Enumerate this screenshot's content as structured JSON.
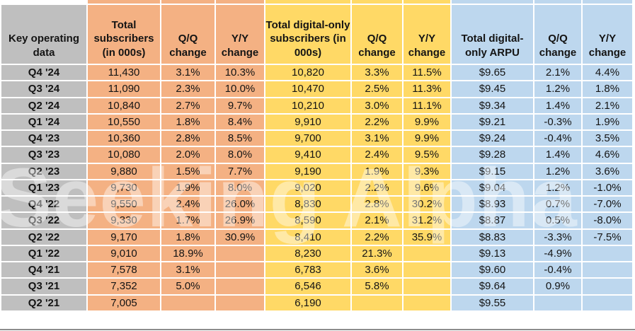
{
  "watermark": {
    "text": "Seeking Alpha"
  },
  "colors": {
    "label_bg": "#bfbfbf",
    "orange": "#f4b183",
    "yellow": "#ffd966",
    "blue": "#bdd7ee",
    "text": "#141414",
    "bottom_border": "#8c8c8c"
  },
  "table": {
    "columns": [
      {
        "key": "key-operating-data",
        "label": "Key operating data",
        "group": "label_bg"
      },
      {
        "key": "total-subscribers",
        "label": "Total subscribers (in 000s)",
        "group": "orange"
      },
      {
        "key": "total-subscribers-qq",
        "label": "Q/Q change",
        "group": "orange"
      },
      {
        "key": "total-subscribers-yy",
        "label": "Y/Y change",
        "group": "orange"
      },
      {
        "key": "digital-subscribers",
        "label": "Total digital-only subscribers (in 000s)",
        "group": "yellow"
      },
      {
        "key": "digital-subscribers-qq",
        "label": "Q/Q change",
        "group": "yellow"
      },
      {
        "key": "digital-subscribers-yy",
        "label": "Y/Y change",
        "group": "yellow"
      },
      {
        "key": "digital-arpu",
        "label": "Total digital-only ARPU",
        "group": "blue"
      },
      {
        "key": "digital-arpu-qq",
        "label": "Q/Q change",
        "group": "blue"
      },
      {
        "key": "digital-arpu-yy",
        "label": "Y/Y change",
        "group": "blue"
      }
    ],
    "rows": [
      {
        "label": "Q4 '24",
        "values": [
          "11,430",
          "3.1%",
          "10.3%",
          "10,820",
          "3.3%",
          "11.5%",
          "$9.65",
          "2.1%",
          "4.4%"
        ]
      },
      {
        "label": "Q3 '24",
        "values": [
          "11,090",
          "2.3%",
          "10.0%",
          "10,470",
          "2.5%",
          "11.3%",
          "$9.45",
          "1.2%",
          "1.8%"
        ]
      },
      {
        "label": "Q2 '24",
        "values": [
          "10,840",
          "2.7%",
          "9.7%",
          "10,210",
          "3.0%",
          "11.1%",
          "$9.34",
          "1.4%",
          "2.1%"
        ]
      },
      {
        "label": "Q1 '24",
        "values": [
          "10,550",
          "1.8%",
          "8.4%",
          "9,910",
          "2.2%",
          "9.9%",
          "$9.21",
          "-0.3%",
          "1.9%"
        ]
      },
      {
        "label": "Q4 '23",
        "values": [
          "10,360",
          "2.8%",
          "8.5%",
          "9,700",
          "3.1%",
          "9.9%",
          "$9.24",
          "-0.4%",
          "3.5%"
        ]
      },
      {
        "label": "Q3 '23",
        "values": [
          "10,080",
          "2.0%",
          "8.0%",
          "9,410",
          "2.4%",
          "9.5%",
          "$9.28",
          "1.4%",
          "4.6%"
        ]
      },
      {
        "label": "Q2 '23",
        "values": [
          "9,880",
          "1.5%",
          "7.7%",
          "9,190",
          "1.9%",
          "9.3%",
          "$9.15",
          "1.2%",
          "3.6%"
        ]
      },
      {
        "label": "Q1 '23",
        "values": [
          "9,730",
          "1.9%",
          "8.0%",
          "9,020",
          "2.2%",
          "9.6%",
          "$9.04",
          "1.2%",
          "-1.0%"
        ]
      },
      {
        "label": "Q4 '22",
        "values": [
          "9,550",
          "2.4%",
          "26.0%",
          "8,830",
          "2.8%",
          "30.2%",
          "$8.93",
          "0.7%",
          "-7.0%"
        ]
      },
      {
        "label": "Q3 '22",
        "values": [
          "9,330",
          "1.7%",
          "26.9%",
          "8,590",
          "2.1%",
          "31.2%",
          "$8.87",
          "0.5%",
          "-8.0%"
        ]
      },
      {
        "label": "Q2 '22",
        "values": [
          "9,170",
          "1.8%",
          "30.9%",
          "8,410",
          "2.2%",
          "35.9%",
          "$8.83",
          "-3.3%",
          "-7.5%"
        ]
      },
      {
        "label": "Q1 '22",
        "values": [
          "9,010",
          "18.9%",
          "",
          "8,230",
          "21.3%",
          "",
          "$9.13",
          "-4.9%",
          ""
        ]
      },
      {
        "label": "Q4 '21",
        "values": [
          "7,578",
          "3.1%",
          "",
          "6,783",
          "3.6%",
          "",
          "$9.60",
          "-0.4%",
          ""
        ]
      },
      {
        "label": "Q3 '21",
        "values": [
          "7,352",
          "5.0%",
          "",
          "6,546",
          "5.8%",
          "",
          "$9.64",
          "0.9%",
          ""
        ]
      },
      {
        "label": "Q2 '21",
        "values": [
          "7,005",
          "",
          "",
          "6,190",
          "",
          "",
          "$9.55",
          "",
          ""
        ]
      }
    ]
  }
}
